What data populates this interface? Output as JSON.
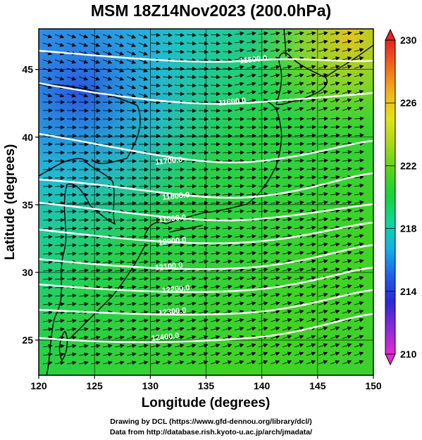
{
  "title": "MSM 18Z14Nov2023 (200.0hPa)",
  "map": {
    "xlabel": "Longitude (degrees)",
    "ylabel": "Latitude  (degrees)",
    "lon_range": [
      120,
      150
    ],
    "lat_range": [
      22.4,
      48
    ],
    "xticks": [
      "120",
      "125",
      "130",
      "135",
      "140",
      "145",
      "150"
    ],
    "yticks": [
      "25",
      "30",
      "35",
      "40",
      "45"
    ],
    "colorbar": {
      "min": 210,
      "max": 230,
      "ticks": [
        "210",
        "214",
        "218",
        "222",
        "226",
        "230"
      ],
      "colors": [
        "#e22bd6",
        "#8a2bd6",
        "#2a2ad6",
        "#2060e8",
        "#12b0e8",
        "#10d6a0",
        "#14d43c",
        "#52d41a",
        "#a4d81a",
        "#e2e218",
        "#f2b21a",
        "#f26a1a",
        "#e62222"
      ]
    },
    "contour_labels": [
      "11500.0",
      "11600.0",
      "11700.0",
      "11800.0",
      "11900.0",
      "12000.0",
      "12100.0",
      "12200.0",
      "12300.0",
      "12400.0"
    ],
    "grid": true
  },
  "footer": {
    "line1": "Drawing by DCL (https://www.gfd-dennou.org/library/dcl/)",
    "line2": "Data from http://database.rish.kyoto-u.ac.jp/arch/jmadata/"
  }
}
